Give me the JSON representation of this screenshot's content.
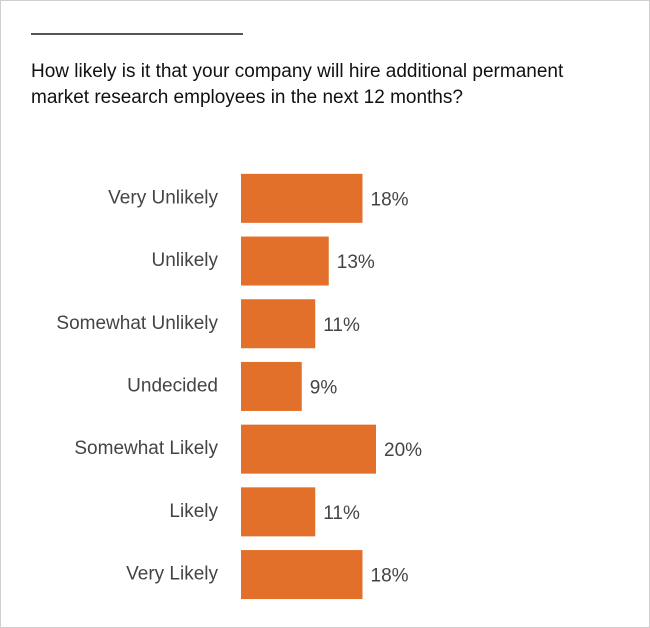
{
  "chart_data": {
    "type": "bar",
    "orientation": "horizontal",
    "title": "How likely is it that your company will hire additional permanent market research employees in the next 12 months?",
    "categories": [
      "Very Unlikely",
      "Unlikely",
      "Somewhat Unlikely",
      "Undecided",
      "Somewhat Likely",
      "Likely",
      "Very Likely"
    ],
    "values": [
      18,
      13,
      11,
      9,
      20,
      11,
      18
    ],
    "value_labels": [
      "18%",
      "13%",
      "11%",
      "9%",
      "20%",
      "11%",
      "18%"
    ],
    "color": "#e2702a"
  }
}
